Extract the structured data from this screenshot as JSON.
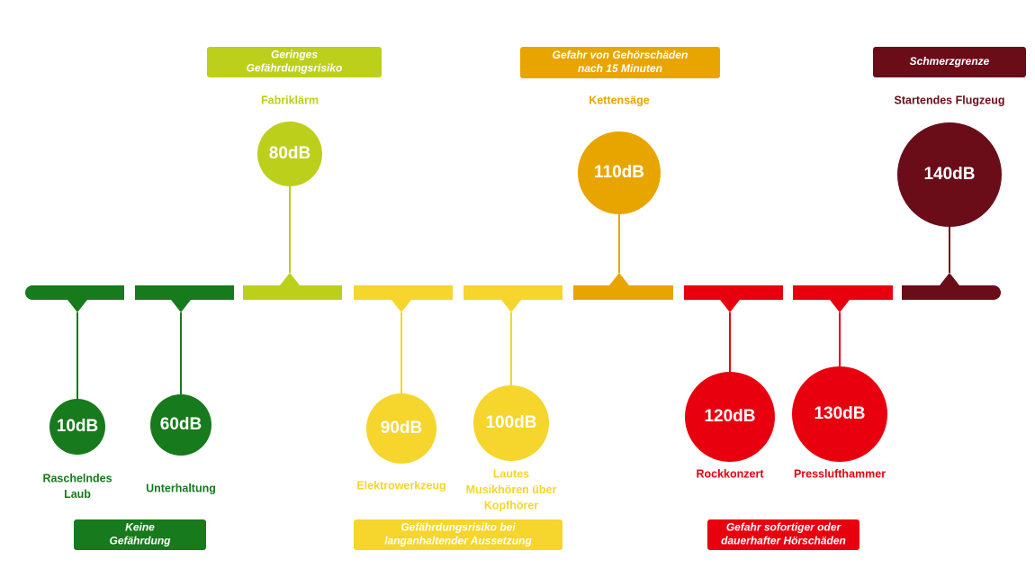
{
  "nodes": [
    {
      "value_label": "10dB",
      "source": [
        "Raschelndes",
        "Laub"
      ]
    },
    {
      "value_label": "60dB",
      "source": [
        "Unterhaltung"
      ]
    },
    {
      "value_label": "80dB",
      "source": [
        "Fabriklärm"
      ]
    },
    {
      "value_label": "90dB",
      "source": [
        "Elektrowerkzeug"
      ]
    },
    {
      "value_label": "100dB",
      "source": [
        "Lautes",
        "Musikhören über",
        "Kopfhörer"
      ]
    },
    {
      "value_label": "110dB",
      "source": [
        "Kettensäge"
      ]
    },
    {
      "value_label": "120dB",
      "source": [
        "Rockkonzert"
      ]
    },
    {
      "value_label": "130dB",
      "source": [
        "Presslufthammer"
      ]
    },
    {
      "value_label": "140dB",
      "source": [
        "Startendes Flugzeug"
      ]
    }
  ],
  "categories": [
    {
      "label": [
        "Keine",
        "Gefährdung"
      ]
    },
    {
      "label": [
        "Geringes",
        "Gefährdungsrisiko"
      ]
    },
    {
      "label": [
        "Gefährdungsrisiko bei",
        "langanhaltender Aussetzung"
      ]
    },
    {
      "label": [
        "Gefahr von Gehörschäden",
        "nach 15 Minuten"
      ]
    },
    {
      "label": [
        "Gefahr sofortiger oder",
        "dauerhafter Hörschäden"
      ]
    },
    {
      "label": [
        "Schmerzgrenze"
      ]
    }
  ]
}
